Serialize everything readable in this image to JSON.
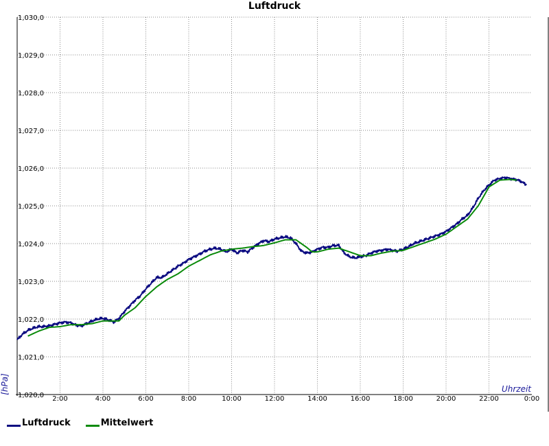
{
  "chart_data": {
    "type": "line",
    "title": "Luftdruck",
    "xlabel": "Uhrzeit",
    "ylabel": "[hPa]",
    "xlim": [
      0,
      24
    ],
    "ylim": [
      1020.0,
      1030.0
    ],
    "x_ticks": [
      "2:00",
      "4:00",
      "6:00",
      "8:00",
      "10:00",
      "12:00",
      "14:00",
      "16:00",
      "18:00",
      "20:00",
      "22:00",
      "0:00"
    ],
    "y_ticks": [
      "1,020,0",
      "1,021,0",
      "1,022,0",
      "1,023,0",
      "1,024,0",
      "1,025,0",
      "1,026,0",
      "1,027,0",
      "1,028,0",
      "1,029,0",
      "1,030,0"
    ],
    "grid": true,
    "legend_position": "bottom-left",
    "series": [
      {
        "name": "Luftdruck",
        "color": "#0a0a80",
        "x": [
          0,
          0.25,
          0.5,
          0.75,
          1,
          1.25,
          1.5,
          1.75,
          2,
          2.25,
          2.5,
          2.75,
          3,
          3.25,
          3.5,
          3.75,
          4,
          4.25,
          4.5,
          4.75,
          5,
          5.25,
          5.5,
          5.75,
          6,
          6.25,
          6.5,
          6.75,
          7,
          7.25,
          7.5,
          7.75,
          8,
          8.25,
          8.5,
          8.75,
          9,
          9.25,
          9.5,
          9.75,
          10,
          10.25,
          10.5,
          10.75,
          11,
          11.25,
          11.5,
          11.75,
          12,
          12.25,
          12.5,
          12.75,
          13,
          13.25,
          13.5,
          13.75,
          14,
          14.25,
          14.5,
          14.75,
          15,
          15.25,
          15.5,
          15.75,
          16,
          16.25,
          16.5,
          16.75,
          17,
          17.25,
          17.5,
          17.75,
          18,
          18.25,
          18.5,
          18.75,
          19,
          19.25,
          19.5,
          19.75,
          20,
          20.25,
          20.5,
          20.75,
          21,
          21.25,
          21.5,
          21.75,
          22,
          22.25,
          22.5,
          22.75,
          23,
          23.25,
          23.5,
          23.75
        ],
        "values": [
          1021.45,
          1021.6,
          1021.7,
          1021.76,
          1021.8,
          1021.8,
          1021.82,
          1021.86,
          1021.9,
          1021.92,
          1021.9,
          1021.84,
          1021.82,
          1021.88,
          1021.95,
          1022.0,
          1022.02,
          1021.98,
          1021.92,
          1022.02,
          1022.2,
          1022.35,
          1022.5,
          1022.62,
          1022.8,
          1022.95,
          1023.1,
          1023.1,
          1023.2,
          1023.3,
          1023.4,
          1023.48,
          1023.58,
          1023.65,
          1023.72,
          1023.8,
          1023.85,
          1023.88,
          1023.85,
          1023.78,
          1023.85,
          1023.75,
          1023.82,
          1023.78,
          1023.9,
          1024.0,
          1024.08,
          1024.05,
          1024.12,
          1024.15,
          1024.18,
          1024.15,
          1024.0,
          1023.8,
          1023.75,
          1023.78,
          1023.85,
          1023.9,
          1023.9,
          1023.95,
          1023.95,
          1023.75,
          1023.65,
          1023.62,
          1023.65,
          1023.68,
          1023.75,
          1023.8,
          1023.82,
          1023.85,
          1023.82,
          1023.8,
          1023.85,
          1023.92,
          1024.0,
          1024.05,
          1024.1,
          1024.15,
          1024.2,
          1024.25,
          1024.32,
          1024.42,
          1024.52,
          1024.65,
          1024.75,
          1024.95,
          1025.2,
          1025.4,
          1025.55,
          1025.68,
          1025.72,
          1025.75,
          1025.72,
          1025.7,
          1025.65,
          1025.55
        ]
      },
      {
        "name": "Mittelwert",
        "color": "#0a8a0a",
        "x": [
          0.5,
          1,
          1.5,
          2,
          2.5,
          3,
          3.5,
          4,
          4.5,
          4.75,
          5,
          5.5,
          6,
          6.5,
          7,
          7.5,
          8,
          8.5,
          9,
          9.5,
          10,
          10.5,
          11,
          11.5,
          12,
          12.5,
          13,
          13.5,
          13.75,
          14,
          14.5,
          15,
          15.5,
          16,
          16.5,
          17,
          17.5,
          18,
          18.5,
          19,
          19.5,
          20,
          20.5,
          21,
          21.5,
          22,
          22.5,
          23,
          23.3
        ],
        "values": [
          1021.55,
          1021.68,
          1021.78,
          1021.8,
          1021.85,
          1021.85,
          1021.88,
          1021.95,
          1021.95,
          1021.95,
          1022.1,
          1022.3,
          1022.6,
          1022.85,
          1023.05,
          1023.2,
          1023.4,
          1023.55,
          1023.7,
          1023.8,
          1023.85,
          1023.88,
          1023.92,
          1023.95,
          1024.02,
          1024.1,
          1024.1,
          1023.9,
          1023.78,
          1023.78,
          1023.85,
          1023.88,
          1023.78,
          1023.68,
          1023.68,
          1023.75,
          1023.8,
          1023.82,
          1023.92,
          1024.02,
          1024.12,
          1024.25,
          1024.45,
          1024.65,
          1025.0,
          1025.5,
          1025.68,
          1025.7,
          1025.68
        ]
      }
    ]
  }
}
